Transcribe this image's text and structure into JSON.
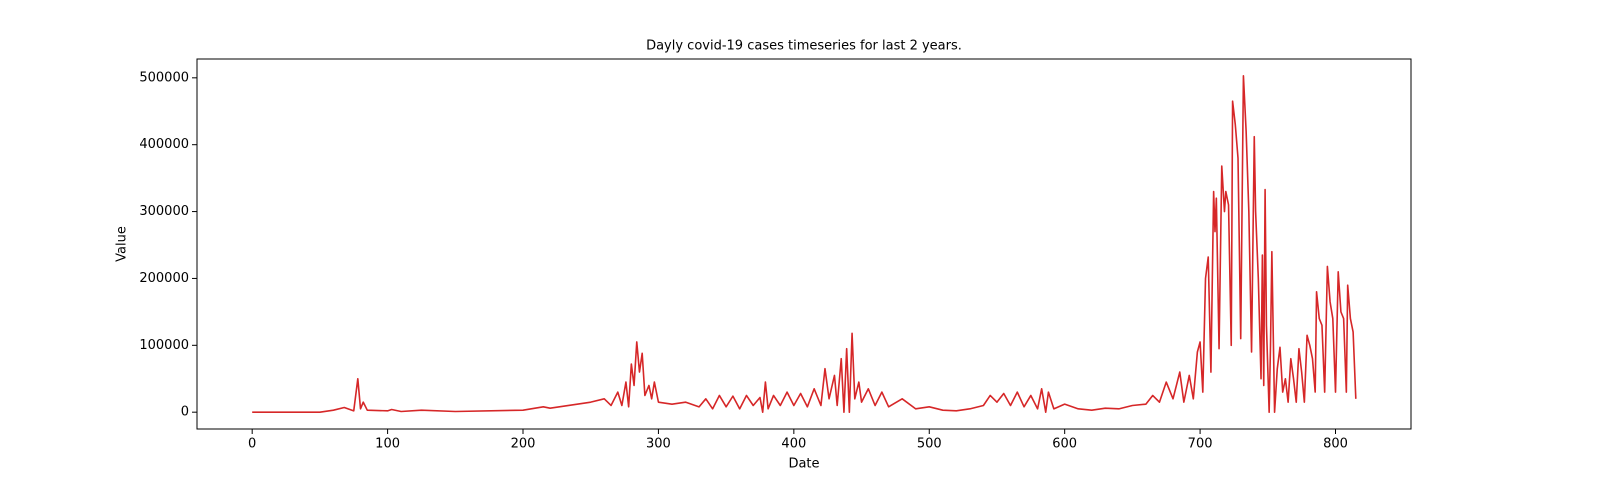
{
  "chart_data": {
    "type": "line",
    "title": "Dayly covid-19 cases timeseries for last 2 years.",
    "x_label": "Date",
    "y_label": "Value",
    "color": "#d62728",
    "x": [
      0,
      50,
      60,
      68,
      75,
      78,
      80,
      82,
      85,
      100,
      103,
      110,
      125,
      150,
      200,
      215,
      220,
      240,
      250,
      260,
      265,
      270,
      273,
      276,
      278,
      280,
      282,
      284,
      286,
      288,
      290,
      293,
      295,
      297,
      300,
      310,
      320,
      330,
      335,
      340,
      345,
      350,
      355,
      360,
      365,
      370,
      375,
      377,
      379,
      381,
      385,
      390,
      395,
      400,
      405,
      410,
      415,
      420,
      423,
      426,
      430,
      432,
      435,
      437,
      439,
      441,
      443,
      445,
      448,
      450,
      455,
      460,
      465,
      470,
      480,
      490,
      500,
      510,
      520,
      530,
      540,
      545,
      550,
      555,
      560,
      565,
      570,
      575,
      580,
      583,
      586,
      588,
      592,
      600,
      610,
      620,
      630,
      640,
      650,
      660,
      665,
      670,
      675,
      680,
      685,
      688,
      692,
      695,
      698,
      700,
      702,
      704,
      706,
      708,
      710,
      711,
      712,
      714,
      716,
      718,
      719,
      721,
      723,
      724,
      726,
      728,
      730,
      732,
      734,
      736,
      738,
      740,
      741,
      743,
      745,
      746,
      747,
      748,
      749,
      751,
      752,
      753,
      755,
      757,
      759,
      761,
      763,
      765,
      767,
      769,
      771,
      773,
      775,
      777,
      779,
      781,
      783,
      785,
      786,
      788,
      790,
      792,
      794,
      796,
      798,
      800,
      802,
      804,
      806,
      808,
      809,
      811,
      813,
      815
    ],
    "values": [
      0,
      0,
      3000,
      7000,
      2000,
      50000,
      5000,
      15000,
      3000,
      2000,
      4000,
      1000,
      3000,
      1000,
      3000,
      8000,
      6000,
      12000,
      15000,
      20000,
      10000,
      30000,
      10000,
      45000,
      8000,
      72000,
      40000,
      105000,
      60000,
      88000,
      25000,
      40000,
      20000,
      45000,
      15000,
      12000,
      15000,
      8000,
      20000,
      5000,
      25000,
      8000,
      24000,
      5000,
      25000,
      10000,
      22000,
      0,
      45000,
      5000,
      25000,
      10000,
      30000,
      10000,
      28000,
      8000,
      35000,
      10000,
      65000,
      20000,
      55000,
      10000,
      80000,
      0,
      95000,
      0,
      118000,
      20000,
      45000,
      15000,
      35000,
      10000,
      30000,
      8000,
      20000,
      5000,
      8000,
      3000,
      2000,
      5000,
      10000,
      25000,
      15000,
      28000,
      10000,
      30000,
      8000,
      25000,
      5000,
      35000,
      0,
      30000,
      5000,
      12000,
      5000,
      3000,
      6000,
      5000,
      10000,
      12000,
      25000,
      15000,
      45000,
      20000,
      60000,
      15000,
      55000,
      20000,
      90000,
      105000,
      30000,
      200000,
      232000,
      60000,
      330000,
      270000,
      320000,
      95000,
      368000,
      300000,
      330000,
      310000,
      100000,
      465000,
      430000,
      380000,
      110000,
      503000,
      420000,
      300000,
      90000,
      412000,
      300000,
      200000,
      50000,
      235000,
      40000,
      333000,
      130000,
      0,
      100000,
      240000,
      0,
      65000,
      97000,
      30000,
      50000,
      15000,
      80000,
      50000,
      15000,
      95000,
      60000,
      15000,
      115000,
      100000,
      80000,
      30000,
      180000,
      140000,
      130000,
      30000,
      218000,
      165000,
      140000,
      30000,
      210000,
      150000,
      140000,
      30000,
      190000,
      140000,
      120000,
      20000
    ],
    "xlim": [
      -40.75,
      855.75
    ],
    "ylim": [
      -25150,
      528150
    ],
    "xticks": [
      0,
      100,
      200,
      300,
      400,
      500,
      600,
      700,
      800
    ],
    "yticks": [
      0,
      100000,
      200000,
      300000,
      400000,
      500000
    ]
  }
}
